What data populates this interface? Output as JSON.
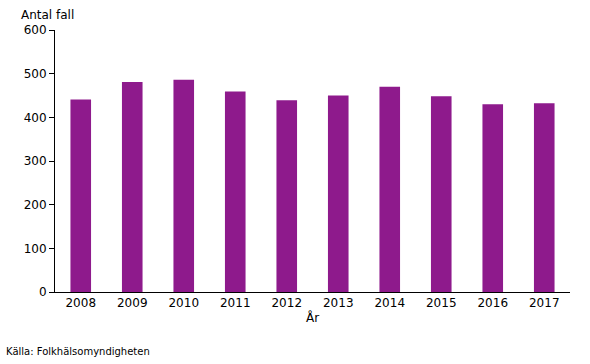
{
  "chart_data": {
    "type": "bar",
    "ylabel": "Antal fall",
    "xlabel": "År",
    "annotations": [
      "Källa: Folkhälsomyndigheten"
    ],
    "categories": [
      "2008",
      "2009",
      "2010",
      "2011",
      "2012",
      "2013",
      "2014",
      "2015",
      "2016",
      "2017"
    ],
    "values": [
      441,
      481,
      486,
      459,
      439,
      450,
      470,
      448,
      430,
      432
    ],
    "color": "#8e1a8c",
    "ylim": [
      0,
      600
    ],
    "yticks": [
      0,
      100,
      200,
      300,
      400,
      500,
      600
    ],
    "grid": false
  }
}
